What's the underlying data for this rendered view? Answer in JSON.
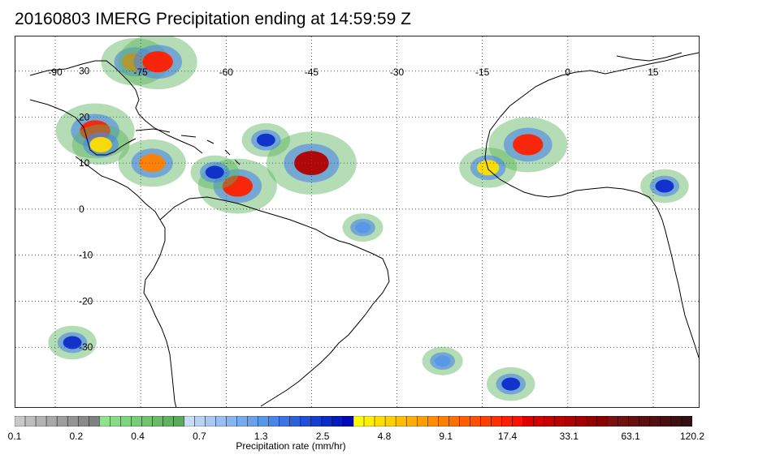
{
  "title": "20160803 IMERG Precipitation ending at 14:59:59 Z",
  "map": {
    "lon_ticks": [
      -90,
      -75,
      -60,
      -45,
      -30,
      -15,
      0,
      15
    ],
    "lon_tick_labels": [
      "-90",
      "-75",
      "-60",
      "-45",
      "-30",
      "-15",
      "0",
      "15"
    ],
    "lat_ticks": [
      30,
      20,
      10,
      0,
      -10,
      -20,
      -30
    ],
    "lat_tick_labels": [
      "30",
      "20",
      "10",
      "0",
      "-10",
      "-20",
      "-30"
    ],
    "grid": "dotted",
    "background_color": "#ffffff",
    "coastline_color": "#000000"
  },
  "colorbar": {
    "title": "Precipitation rate (mm/hr)",
    "labels": [
      "0.1",
      "0.2",
      "0.4",
      "0.7",
      "1.3",
      "2.5",
      "4.8",
      "9.1",
      "17.4",
      "33.1",
      "63.1",
      "120.2"
    ],
    "colors": [
      "#c8c8c8",
      "#bdbdbd",
      "#b3b3b3",
      "#a8a8a8",
      "#9e9e9e",
      "#949494",
      "#8a8a8a",
      "#808080",
      "#8fe38f",
      "#87dc87",
      "#7fd47f",
      "#77cc77",
      "#70c470",
      "#68bc68",
      "#60b460",
      "#59ac59",
      "#c8dcf8",
      "#b8d2f6",
      "#a8c8f4",
      "#98bef2",
      "#88b4f0",
      "#78aaee",
      "#68a0ec",
      "#5896ea",
      "#4a86e8",
      "#3c74e2",
      "#2e62dc",
      "#2050d6",
      "#163ed0",
      "#0c2cca",
      "#061ac4",
      "#0008be",
      "#ffff00",
      "#ffef00",
      "#ffdf00",
      "#ffcf00",
      "#ffbf00",
      "#ffaf00",
      "#ff9f00",
      "#ff8f00",
      "#ff7f00",
      "#ff6f00",
      "#ff5f00",
      "#ff4f00",
      "#ff3f00",
      "#ff2f00",
      "#ff1f00",
      "#ff0f00",
      "#e00000",
      "#d40000",
      "#c80000",
      "#bc0000",
      "#b00000",
      "#a40000",
      "#980000",
      "#8c0000",
      "#7c1010",
      "#721010",
      "#681010",
      "#5e1010",
      "#541010",
      "#4a1010",
      "#401010",
      "#361010"
    ]
  },
  "precip_cells": [
    {
      "lon": -83,
      "lat": 17,
      "value": 17.4
    },
    {
      "lon": -82,
      "lat": 14,
      "value": 4.8
    },
    {
      "lon": -76,
      "lat": 32,
      "value": 9.1
    },
    {
      "lon": -72,
      "lat": 32,
      "value": 17.4
    },
    {
      "lon": -73,
      "lat": 10,
      "value": 9.1
    },
    {
      "lon": -58,
      "lat": 5,
      "value": 17.4
    },
    {
      "lon": -62,
      "lat": 8,
      "value": 2.5
    },
    {
      "lon": -45,
      "lat": 10,
      "value": 33.1
    },
    {
      "lon": -53,
      "lat": 15,
      "value": 2.5
    },
    {
      "lon": -7,
      "lat": 14,
      "value": 17.4
    },
    {
      "lon": -14,
      "lat": 9,
      "value": 4.8
    },
    {
      "lon": 17,
      "lat": 5,
      "value": 2.5
    },
    {
      "lon": -87,
      "lat": -29,
      "value": 2.5
    },
    {
      "lon": -22,
      "lat": -33,
      "value": 1.3
    },
    {
      "lon": -10,
      "lat": -38,
      "value": 2.5
    },
    {
      "lon": -36,
      "lat": -4,
      "value": 1.3
    }
  ]
}
